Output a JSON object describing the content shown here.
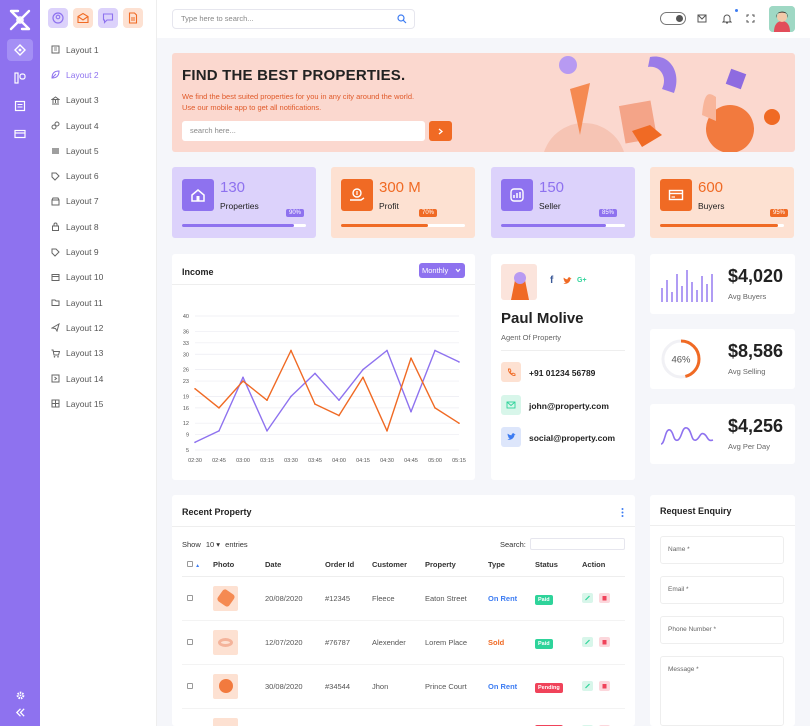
{
  "search": {
    "placeholder": "Type here to search..."
  },
  "sidebar": {
    "items": [
      {
        "label": "Layout 1",
        "icon": "building-icon"
      },
      {
        "label": "Layout 2",
        "icon": "leaf-icon"
      },
      {
        "label": "Layout 3",
        "icon": "bank-icon"
      },
      {
        "label": "Layout 4",
        "icon": "link-icon"
      },
      {
        "label": "Layout 5",
        "icon": "stack-icon"
      },
      {
        "label": "Layout 6",
        "icon": "tag-icon"
      },
      {
        "label": "Layout 7",
        "icon": "shop-icon"
      },
      {
        "label": "Layout 8",
        "icon": "lock-icon"
      },
      {
        "label": "Layout 9",
        "icon": "tag-icon"
      },
      {
        "label": "Layout 10",
        "icon": "window-icon"
      },
      {
        "label": "Layout 11",
        "icon": "folder-icon"
      },
      {
        "label": "Layout 12",
        "icon": "plane-icon"
      },
      {
        "label": "Layout 13",
        "icon": "cart-icon"
      },
      {
        "label": "Layout 14",
        "icon": "arrow-box-icon"
      },
      {
        "label": "Layout 15",
        "icon": "grid-icon"
      }
    ],
    "active_index": 1
  },
  "hero": {
    "title": "FIND THE BEST PROPERTIES.",
    "line1": "We find the best suited properties for you in any city around the world.",
    "line2": "Use our mobile app to get all notifications.",
    "search_placeholder": "search here..."
  },
  "stats": [
    {
      "value": "130",
      "label": "Properties",
      "pct": "90%",
      "fraction": 0.9,
      "accent": "#8e72ef",
      "bg": "#dcd2fb",
      "icon": "home-icon"
    },
    {
      "value": "300 M",
      "label": "Profit",
      "pct": "70%",
      "fraction": 0.7,
      "accent": "#f06a24",
      "bg": "#fde1d2",
      "icon": "dollar-hand-icon"
    },
    {
      "value": "150",
      "label": "Seller",
      "pct": "85%",
      "fraction": 0.85,
      "accent": "#8e72ef",
      "bg": "#dcd2fb",
      "icon": "chart-icon"
    },
    {
      "value": "600",
      "label": "Buyers",
      "pct": "95%",
      "fraction": 0.95,
      "accent": "#f06a24",
      "bg": "#fde1d2",
      "icon": "card-icon"
    }
  ],
  "income": {
    "title": "Income",
    "period": "Monthly"
  },
  "chart_data": {
    "type": "line",
    "title": "Income",
    "x": [
      "02:30",
      "02:45",
      "03:00",
      "03:15",
      "03:30",
      "03:45",
      "04:00",
      "04:15",
      "04:30",
      "04:45",
      "05:00",
      "05:15"
    ],
    "ylim": [
      5,
      40
    ],
    "yticks": [
      5,
      9,
      12,
      16,
      19,
      23,
      26,
      30,
      33,
      36,
      40
    ],
    "grid": true,
    "series": [
      {
        "color": "#8e72ef",
        "values": [
          7,
          10,
          24,
          10,
          19,
          25,
          18,
          26,
          31,
          15,
          31,
          28
        ]
      },
      {
        "color": "#f06a24",
        "values": [
          21,
          16,
          23,
          18,
          31,
          17,
          14,
          24,
          10,
          29,
          16,
          12
        ]
      }
    ]
  },
  "agent": {
    "name": "Paul Molive",
    "role": "Agent Of Property",
    "phone": "+91 01234 56789",
    "email": "john@property.com",
    "social": "social@property.com"
  },
  "minis": [
    {
      "value": "$4,020",
      "label": "Avg Buyers"
    },
    {
      "value": "$8,586",
      "label": "Avg Selling",
      "ring": "46%",
      "ring_fraction": 0.46
    },
    {
      "value": "$4,256",
      "label": "Avg Per Day"
    }
  ],
  "recent": {
    "title": "Recent Property",
    "show_label": "Show",
    "entries_value": "10",
    "entries_label": "entries",
    "search_label": "Search:",
    "columns": [
      "Photo",
      "Date",
      "Order Id",
      "Customer",
      "Property",
      "Type",
      "Status",
      "Action"
    ],
    "rows": [
      {
        "date": "20/08/2020",
        "order": "#12345",
        "customer": "Fleece",
        "property": "Eaton Street",
        "type": "On Rent",
        "type_color": "#3d7cf2",
        "status": "Paid",
        "status_color": "#2ed39a"
      },
      {
        "date": "12/07/2020",
        "order": "#76787",
        "customer": "Alexender",
        "property": "Lorem Place",
        "type": "Sold",
        "type_color": "#f06a24",
        "status": "Paid",
        "status_color": "#2ed39a"
      },
      {
        "date": "30/08/2020",
        "order": "#34544",
        "customer": "Jhon",
        "property": "Prince Court",
        "type": "On Rent",
        "type_color": "#3d7cf2",
        "status": "Pending",
        "status_color": "#f0435a"
      }
    ]
  },
  "enquiry": {
    "title": "Request Enquiry",
    "name": "Name *",
    "email": "Email *",
    "phone": "Phone Number *",
    "message": "Message *"
  }
}
